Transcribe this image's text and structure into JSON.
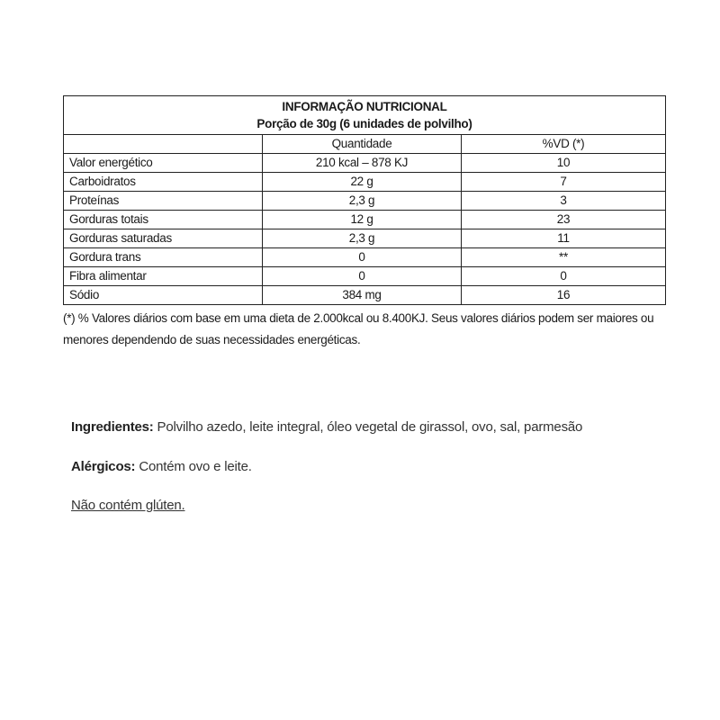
{
  "table": {
    "title": "INFORMAÇÃO NUTRICIONAL",
    "portion": "Porção de 30g (6 unidades de polvilho)",
    "headers": [
      "",
      "Quantidade",
      "%VD (*)"
    ],
    "rows": [
      [
        "Valor energético",
        "210 kcal – 878 KJ",
        "10"
      ],
      [
        "Carboidratos",
        "22 g",
        "7"
      ],
      [
        "Proteínas",
        "2,3 g",
        "3"
      ],
      [
        "Gorduras totais",
        "12 g",
        "23"
      ],
      [
        "Gorduras saturadas",
        "2,3 g",
        "11"
      ],
      [
        "Gordura trans",
        "0",
        "**"
      ],
      [
        "Fibra alimentar",
        "0",
        "0"
      ],
      [
        "Sódio",
        "384 mg",
        "16"
      ]
    ]
  },
  "footnote": "(*) % Valores diários com base em uma dieta de 2.000kcal ou 8.400KJ. Seus valores diários podem ser maiores ou menores dependendo de suas necessidades energéticas.",
  "ingredients": {
    "label": "Ingredientes:",
    "text": " Polvilho azedo, leite integral, óleo vegetal de girassol, ovo, sal, parmesão"
  },
  "allergens": {
    "label": "Alérgicos:",
    "text": " Contém ovo e leite."
  },
  "gluten": "Não contém glúten."
}
